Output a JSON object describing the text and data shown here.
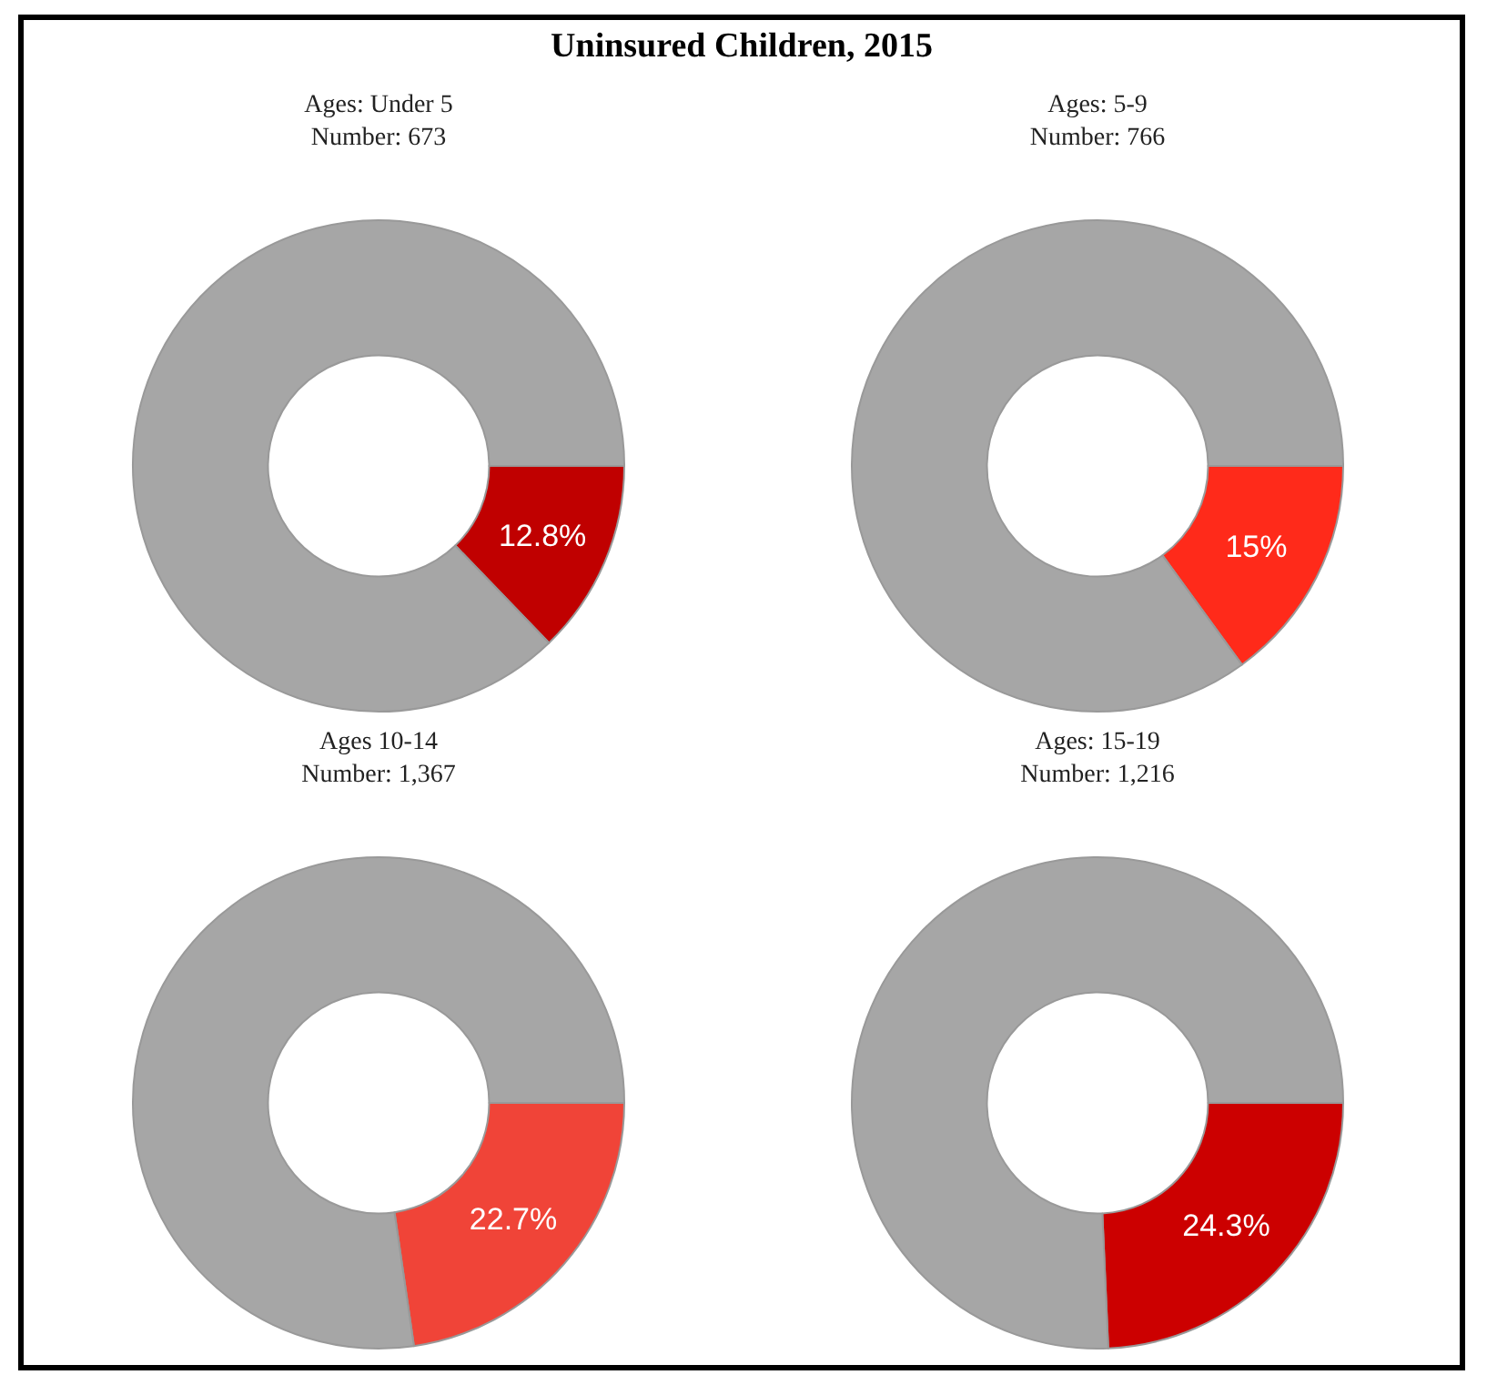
{
  "chart_data": [
    {
      "type": "other",
      "title": "Uninsured Children, 2015"
    },
    {
      "type": "donut",
      "title": "Ages: Under 5",
      "subtitle": "Number: 673",
      "categories": [
        null,
        null
      ],
      "values": [
        12.8,
        87.2
      ],
      "colors": [
        "#c00000",
        "#a6a6a6"
      ],
      "value_labels": [
        "12.8%",
        null
      ]
    },
    {
      "type": "donut",
      "title": "Ages: 5-9",
      "subtitle": "Number: 766",
      "categories": [
        null,
        null
      ],
      "values": [
        15,
        85
      ],
      "colors": [
        "#ff2a1a",
        "#a6a6a6"
      ],
      "value_labels": [
        "15%",
        null
      ]
    },
    {
      "type": "donut",
      "title": "Ages 10-14",
      "subtitle": "Number: 1,367",
      "categories": [
        null,
        null
      ],
      "values": [
        22.7,
        77.3
      ],
      "colors": [
        "#f04438",
        "#a6a6a6"
      ],
      "value_labels": [
        "22.7%",
        null
      ]
    },
    {
      "type": "donut",
      "title": "Ages: 15-19",
      "subtitle": "Number: 1,216",
      "categories": [
        null,
        null
      ],
      "values": [
        24.3,
        75.7
      ],
      "colors": [
        "#cc0000",
        "#a6a6a6"
      ],
      "value_labels": [
        "24.3%",
        null
      ]
    }
  ]
}
